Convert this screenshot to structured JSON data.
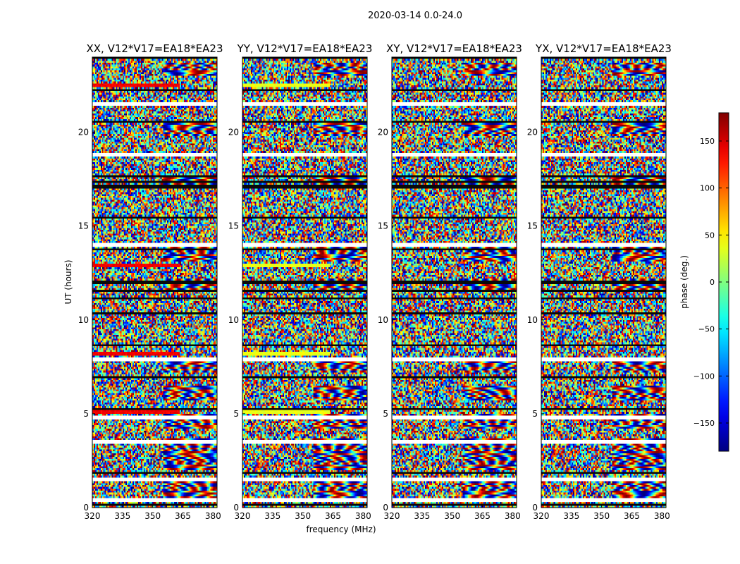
{
  "figure_title": "2020-03-14 0.0-24.0",
  "chart_data": [
    {
      "type": "heatmap",
      "title": "XX, V12*V17=EA18*EA23",
      "polarization": "XX",
      "xlabel": "frequency (MHz)",
      "ylabel": "UT (hours)",
      "xlim": [
        320,
        382
      ],
      "ylim": [
        0,
        24
      ],
      "xticks": [
        320,
        335,
        350,
        365,
        380
      ],
      "yticks": [
        0,
        5,
        10,
        15,
        20
      ],
      "value": "phase (deg.)",
      "value_range": [
        -180,
        180
      ],
      "blank_rows_ut": [
        0.4,
        1.5,
        3.5,
        4.8,
        7.9,
        14.0,
        18.8,
        21.5
      ],
      "coherent_rows_ut": [
        0.8,
        1.1,
        2.3,
        2.8,
        3.3,
        4.6,
        6.1,
        7.5,
        11.8,
        13.5,
        17.4,
        20.2,
        23.4
      ]
    },
    {
      "type": "heatmap",
      "title": "YY, V12*V17=EA18*EA23",
      "polarization": "YY",
      "xlabel": "frequency (MHz)",
      "ylabel": "UT (hours)",
      "xlim": [
        320,
        382
      ],
      "ylim": [
        0,
        24
      ],
      "xticks": [
        320,
        335,
        350,
        365,
        380
      ],
      "yticks": [
        0,
        5,
        10,
        15,
        20
      ],
      "value": "phase (deg.)",
      "value_range": [
        -180,
        180
      ],
      "blank_rows_ut": [
        0.4,
        1.5,
        3.5,
        4.8,
        7.9,
        14.0,
        18.8,
        21.5
      ],
      "coherent_rows_ut": [
        0.8,
        1.1,
        2.3,
        2.8,
        3.3,
        4.6,
        6.1,
        7.5,
        11.8,
        13.5,
        17.4,
        20.2,
        23.4
      ]
    },
    {
      "type": "heatmap",
      "title": "XY, V12*V17=EA18*EA23",
      "polarization": "XY",
      "xlabel": "frequency (MHz)",
      "ylabel": "UT (hours)",
      "xlim": [
        320,
        382
      ],
      "ylim": [
        0,
        24
      ],
      "xticks": [
        320,
        335,
        350,
        365,
        380
      ],
      "yticks": [
        0,
        5,
        10,
        15,
        20
      ],
      "value": "phase (deg.)",
      "value_range": [
        -180,
        180
      ],
      "blank_rows_ut": [
        0.4,
        1.5,
        3.5,
        4.8,
        7.9,
        14.0,
        18.8,
        21.5
      ],
      "coherent_rows_ut": [
        0.8,
        1.1,
        2.3,
        2.8,
        3.3,
        4.6,
        6.1,
        7.5,
        11.8,
        13.5,
        17.4,
        20.2,
        23.4
      ]
    },
    {
      "type": "heatmap",
      "title": "YX, V12*V17=EA18*EA23",
      "polarization": "YX",
      "xlabel": "frequency (MHz)",
      "ylabel": "UT (hours)",
      "xlim": [
        320,
        382
      ],
      "ylim": [
        0,
        24
      ],
      "xticks": [
        320,
        335,
        350,
        365,
        380
      ],
      "yticks": [
        0,
        5,
        10,
        15,
        20
      ],
      "value": "phase (deg.)",
      "value_range": [
        -180,
        180
      ],
      "blank_rows_ut": [
        0.4,
        1.5,
        3.5,
        4.8,
        7.9,
        14.0,
        18.8,
        21.5
      ],
      "coherent_rows_ut": [
        0.8,
        1.1,
        2.3,
        2.8,
        3.3,
        4.6,
        6.1,
        7.5,
        11.8,
        13.5,
        17.4,
        20.2,
        23.4
      ]
    }
  ],
  "colorbar": {
    "label": "phase (deg.)",
    "min": -180,
    "max": 180,
    "ticks": [
      150,
      100,
      50,
      0,
      -50,
      -100,
      -150
    ],
    "tick_labels": [
      "150",
      "100",
      "50",
      "0",
      "−50",
      "−100",
      "−150"
    ],
    "colormap": "jet"
  },
  "shared": {
    "x_tick_labels": [
      "320",
      "335",
      "350",
      "365",
      "380"
    ],
    "y_tick_labels": [
      "0",
      "5",
      "10",
      "15",
      "20"
    ],
    "xlabel": "frequency (MHz)",
    "ylabel": "UT (hours)"
  }
}
